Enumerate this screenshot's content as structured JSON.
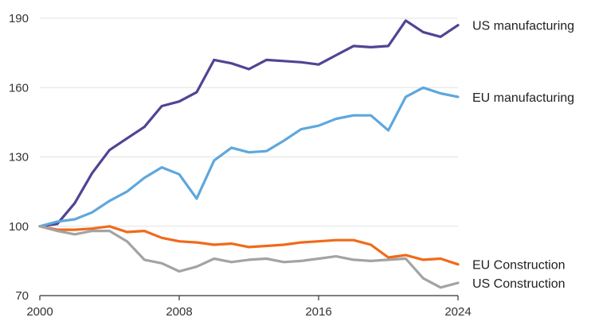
{
  "chart_data": {
    "type": "line",
    "title": "",
    "xlabel": "",
    "ylabel": "",
    "xlim": [
      2000,
      2024
    ],
    "ylim": [
      70,
      190
    ],
    "x": [
      2000,
      2001,
      2002,
      2003,
      2004,
      2005,
      2006,
      2007,
      2008,
      2009,
      2010,
      2011,
      2012,
      2013,
      2014,
      2015,
      2016,
      2017,
      2018,
      2019,
      2020,
      2021,
      2022,
      2023,
      2024
    ],
    "x_ticks": [
      "2000",
      "2008",
      "2016",
      "2024"
    ],
    "y_ticks": [
      "70",
      "100",
      "130",
      "160",
      "190"
    ],
    "grid": "horizontal",
    "legend": "labels at line ends (right)",
    "series": [
      {
        "name": "US manufacturing",
        "color": "#4f4595",
        "values": [
          100,
          101,
          110,
          123,
          133,
          138,
          143,
          152,
          154,
          158,
          172,
          170.5,
          168,
          172,
          171.5,
          171,
          170,
          174,
          178,
          177.5,
          178,
          189,
          184,
          182,
          187
        ]
      },
      {
        "name": "EU manufacturing",
        "color": "#5ea7dd",
        "values": [
          100,
          102,
          103,
          106,
          111,
          115,
          121,
          125.5,
          122.5,
          112,
          128.5,
          134,
          132,
          132.5,
          137,
          142,
          143.5,
          146.5,
          148,
          148,
          141.5,
          156,
          160,
          157.5,
          156
        ]
      },
      {
        "name": "EU Construction",
        "color": "#f06a1a",
        "values": [
          100,
          98.5,
          98.5,
          99,
          100,
          97.5,
          98,
          95,
          93.5,
          93,
          92,
          92.5,
          91,
          91.5,
          92,
          93,
          93.5,
          94,
          94,
          92,
          86.5,
          87.5,
          85.5,
          86,
          83.5
        ]
      },
      {
        "name": "US Construction",
        "color": "#a3a3a3",
        "values": [
          100,
          98,
          96.5,
          98,
          98,
          93.5,
          85.5,
          84,
          80.5,
          82.5,
          86,
          84.5,
          85.5,
          86,
          84.5,
          85,
          86,
          87,
          85.5,
          85,
          85.5,
          86,
          77.5,
          73.5,
          75.5
        ]
      }
    ]
  }
}
